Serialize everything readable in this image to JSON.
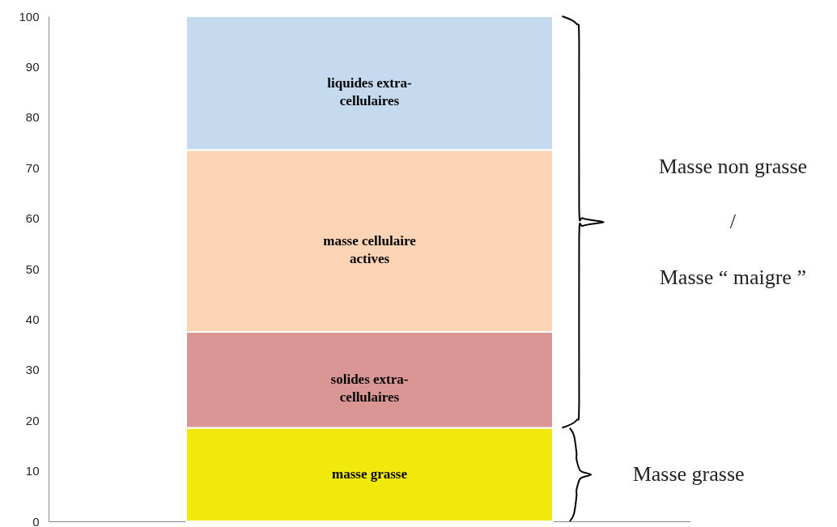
{
  "chart_data": {
    "type": "bar",
    "stacked": true,
    "categories": [
      null
    ],
    "series": [
      {
        "name": "masse grasse",
        "color": "#f2e90c",
        "values": [
          18.5
        ]
      },
      {
        "name": "solides extra-cellulaires",
        "color": "#d99694",
        "values": [
          19
        ]
      },
      {
        "name": "masse cellulaire actives",
        "color": "#fad4b4",
        "values": [
          36
        ]
      },
      {
        "name": "liquides extra-cellulaires",
        "color": "#c5d9ef",
        "values": [
          26.5
        ]
      }
    ],
    "ylim": [
      0,
      100
    ],
    "yticks": [
      0,
      10,
      20,
      30,
      40,
      50,
      60,
      70,
      80,
      90,
      100
    ],
    "tick_labels": "y",
    "grid": false,
    "annotations": [
      "Masse  non grasse",
      "/",
      "Masse “ maigre ”",
      "Masse grasse"
    ]
  }
}
